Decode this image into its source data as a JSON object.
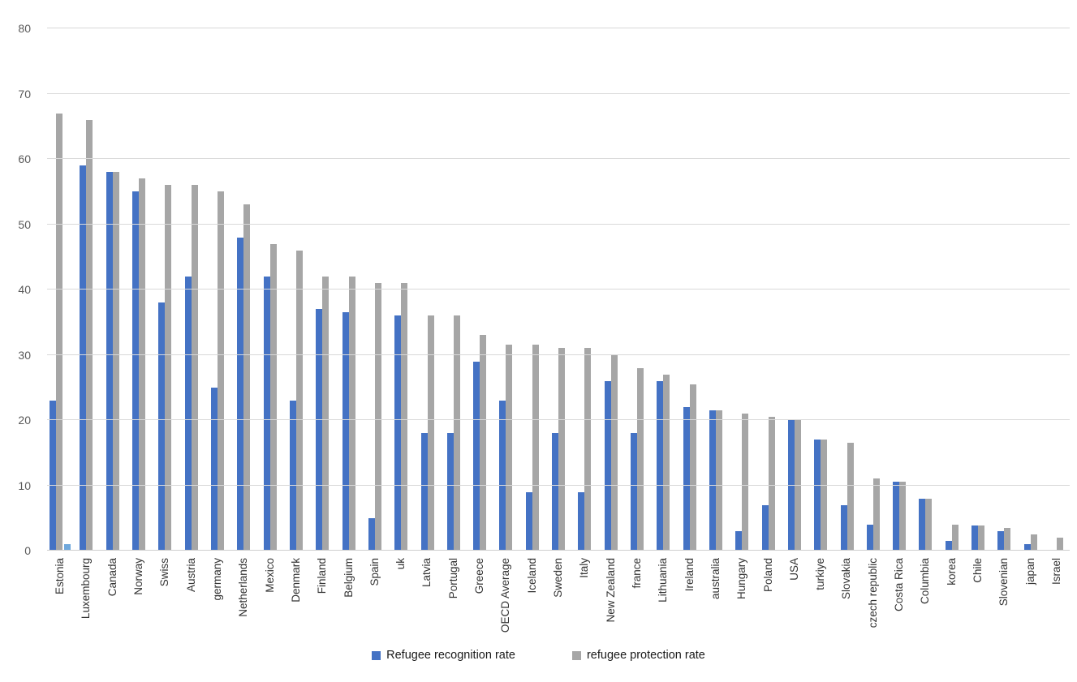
{
  "chart_data": {
    "type": "bar",
    "title": "",
    "xlabel": "",
    "ylabel": "",
    "ylim": [
      0,
      80
    ],
    "yticks": [
      0,
      10,
      20,
      30,
      40,
      50,
      60,
      70,
      80
    ],
    "grid": true,
    "legend_position": "bottom-center",
    "categories": [
      "Estonia",
      "Luxembourg",
      "Canada",
      "Norway",
      "Swiss",
      "Austria",
      "germany",
      "Netherlands",
      "Mexico",
      "Denmark",
      "Finland",
      "Belgium",
      "Spain",
      "uk",
      "Latvia",
      "Portugal",
      "Greece",
      "OECD Average",
      "Iceland",
      "Sweden",
      "Italy",
      "New Zealand",
      "france",
      "Lithuania",
      "Ireland",
      "australia",
      "Hungary",
      "Poland",
      "USA",
      "turkiye",
      "Slovakia",
      "czech republic",
      "Costa Rica",
      "Columbia",
      "korea",
      "Chile",
      "Slovenian",
      "japan",
      "Israel"
    ],
    "series": [
      {
        "name": "Refugee recognition rate",
        "color": "#4472C4",
        "values": [
          23,
          59,
          58,
          55,
          38,
          42,
          25,
          48,
          42,
          23,
          37,
          36.5,
          5,
          36,
          18,
          18,
          29,
          23,
          9,
          18,
          9,
          26,
          18,
          26,
          22,
          21.5,
          3,
          7,
          20,
          17,
          7,
          4,
          10.5,
          8,
          1.5,
          3.8,
          3,
          1,
          0
        ]
      },
      {
        "name": "refugee protection rate",
        "color": "#A6A6A6",
        "values": [
          67,
          66,
          58,
          57,
          56,
          56,
          55,
          53,
          47,
          46,
          42,
          42,
          41,
          41,
          36,
          36,
          33,
          31.5,
          31.5,
          31,
          31,
          30,
          28,
          27,
          25.5,
          21.5,
          21,
          20.5,
          20,
          17,
          16.5,
          11,
          10.5,
          8,
          4,
          3.8,
          3.5,
          2.5,
          2
        ]
      }
    ],
    "extra_bars": [
      {
        "category_index": 0,
        "value": 1,
        "color": "#6FA8DC"
      }
    ],
    "colors": {
      "background": "#FFFFFF",
      "gridline": "#D9D9D9",
      "tick_text": "#595959",
      "category_text": "#333333",
      "legend_text": "#1A1A1A"
    }
  }
}
